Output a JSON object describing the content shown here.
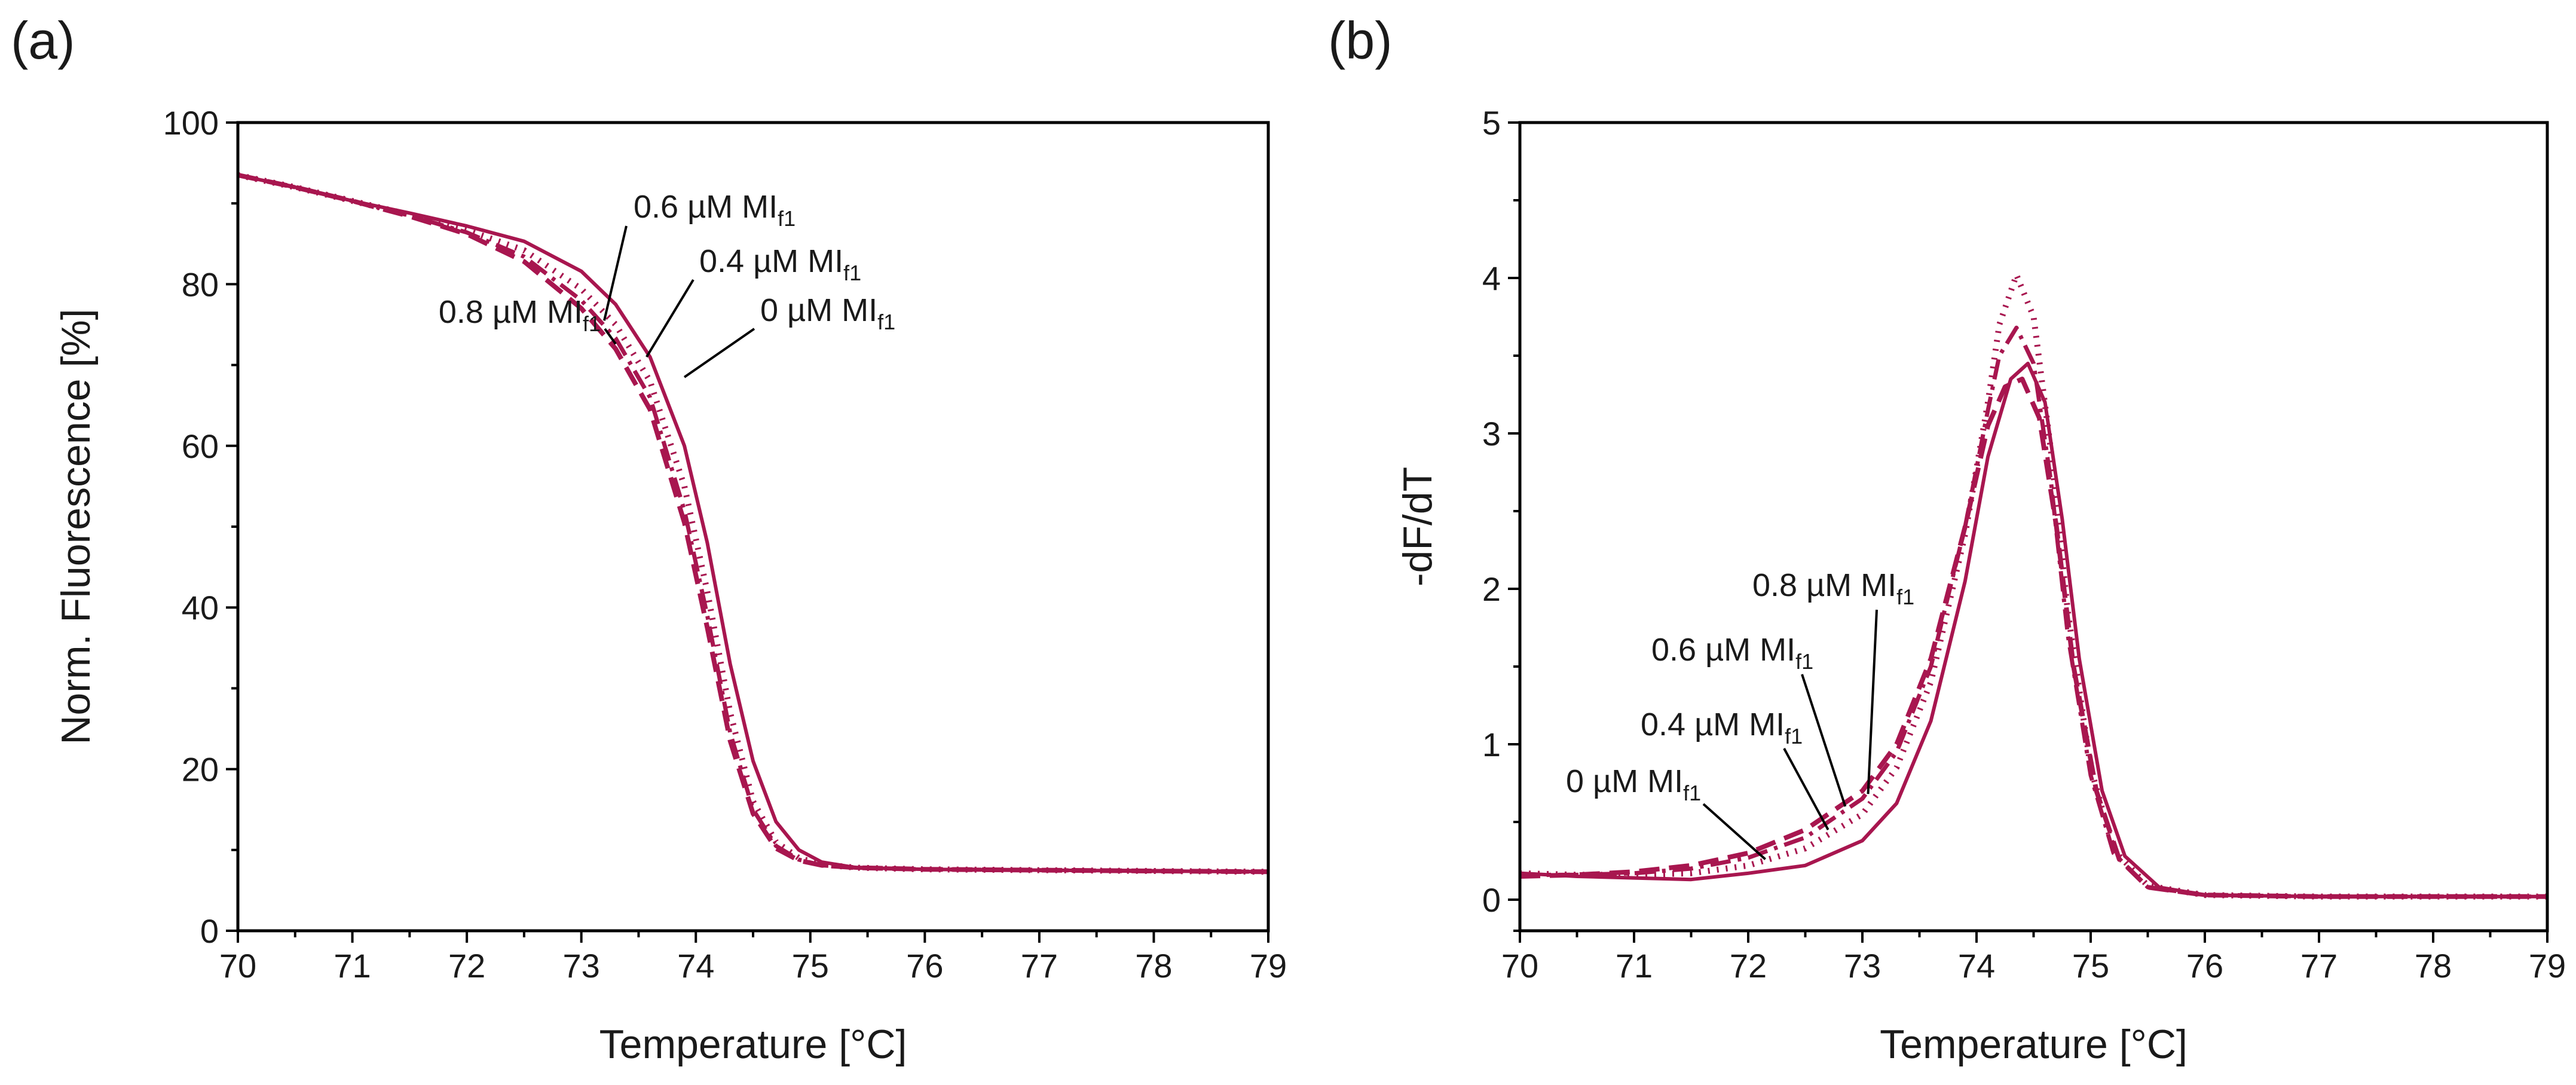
{
  "figure": {
    "accent_color": "#A8164F",
    "panels": [
      "(a)",
      "(b)"
    ]
  },
  "chart_data": [
    {
      "type": "line",
      "panel_label": "(a)",
      "title": "",
      "xlabel": "Temperature [°C]",
      "ylabel": "Norm. Fluorescence [%]",
      "xlim": [
        70,
        79
      ],
      "ylim": [
        0,
        100
      ],
      "xticks": [
        "70",
        "71",
        "72",
        "73",
        "74",
        "75",
        "76",
        "77",
        "78",
        "79"
      ],
      "yticks": [
        "0",
        "20",
        "40",
        "60",
        "80",
        "100"
      ],
      "series": [
        {
          "name": "0 µM MI_f1",
          "style": "solid",
          "color": "#A8164F",
          "x": [
            70,
            70.5,
            71,
            71.5,
            72,
            72.5,
            73,
            73.3,
            73.6,
            73.9,
            74.1,
            74.3,
            74.5,
            74.7,
            74.9,
            75.1,
            75.4,
            76,
            77,
            78,
            79
          ],
          "y": [
            93.5,
            92,
            90.3,
            88.8,
            87.2,
            85.3,
            81.6,
            77.5,
            71,
            60,
            48,
            33,
            21,
            13.5,
            10,
            8.5,
            7.8,
            7.6,
            7.5,
            7.4,
            7.3
          ]
        },
        {
          "name": "0.4 µM MI_f1",
          "style": "dotted",
          "color": "#A8164F",
          "x": [
            70,
            70.5,
            71,
            71.5,
            72,
            72.5,
            73,
            73.3,
            73.6,
            73.9,
            74.1,
            74.3,
            74.5,
            74.7,
            74.9,
            75.1,
            75.4,
            76,
            77,
            78,
            79
          ],
          "y": [
            93.5,
            92,
            90.3,
            88.6,
            86.7,
            84.2,
            79.4,
            75,
            68,
            55,
            42,
            27,
            16,
            11,
            9,
            8.2,
            7.8,
            7.6,
            7.5,
            7.4,
            7.3
          ]
        },
        {
          "name": "0.6 µM MI_f1",
          "style": "dashdot",
          "color": "#A8164F",
          "x": [
            70,
            70.5,
            71,
            71.5,
            72,
            72.5,
            73,
            73.3,
            73.6,
            73.9,
            74.1,
            74.3,
            74.5,
            74.7,
            74.9,
            75.1,
            75.4,
            76,
            77,
            78,
            79
          ],
          "y": [
            93.5,
            92,
            90.3,
            88.5,
            86.4,
            83.4,
            78,
            73.3,
            66,
            52,
            39,
            24.5,
            15,
            10.5,
            8.8,
            8.1,
            7.8,
            7.6,
            7.5,
            7.4,
            7.3
          ]
        },
        {
          "name": "0.8 µM MI_f1",
          "style": "dashed",
          "color": "#A8164F",
          "x": [
            70,
            70.5,
            71,
            71.5,
            72,
            72.5,
            73,
            73.3,
            73.6,
            73.9,
            74.1,
            74.3,
            74.5,
            74.7,
            74.9,
            75.1,
            75.4,
            76,
            77,
            78,
            79
          ],
          "y": [
            93.5,
            92,
            90.3,
            88.4,
            86.2,
            82.8,
            77,
            72,
            64.5,
            50.5,
            37.5,
            23.5,
            14.5,
            10.2,
            8.7,
            8.1,
            7.8,
            7.6,
            7.5,
            7.4,
            7.3
          ]
        }
      ],
      "annotations": [
        {
          "text": "0.6 µM MI",
          "sub": "f1",
          "points_to_x": 73.2,
          "points_to_y": 75.5
        },
        {
          "text": "0.4 µM MI",
          "sub": "f1",
          "points_to_x": 73.57,
          "points_to_y": 71
        },
        {
          "text": "0.8 µM MI",
          "sub": "f1",
          "points_to_x": 73.3,
          "points_to_y": 72.6
        },
        {
          "text": "0 µM MI",
          "sub": "f1",
          "points_to_x": 73.9,
          "points_to_y": 68.5
        }
      ]
    },
    {
      "type": "line",
      "panel_label": "(b)",
      "title": "",
      "xlabel": "Temperature [°C]",
      "ylabel": "-dF/dT",
      "xlim": [
        70,
        79
      ],
      "ylim": [
        -0.2,
        5
      ],
      "xticks": [
        "70",
        "71",
        "72",
        "73",
        "74",
        "75",
        "76",
        "77",
        "78",
        "79"
      ],
      "yticks": [
        "0",
        "1",
        "2",
        "3",
        "4",
        "5"
      ],
      "series": [
        {
          "name": "0 µM MI_f1",
          "style": "solid",
          "color": "#A8164F",
          "x": [
            70,
            70.5,
            71,
            71.5,
            72,
            72.5,
            73,
            73.3,
            73.6,
            73.9,
            74.1,
            74.3,
            74.45,
            74.6,
            74.75,
            74.9,
            75.1,
            75.3,
            75.6,
            76,
            77,
            78,
            79
          ],
          "y": [
            0.17,
            0.15,
            0.14,
            0.13,
            0.17,
            0.22,
            0.38,
            0.62,
            1.15,
            2.05,
            2.85,
            3.35,
            3.45,
            3.2,
            2.45,
            1.55,
            0.7,
            0.28,
            0.08,
            0.03,
            0.02,
            0.02,
            0.02
          ]
        },
        {
          "name": "0.4 µM MI_f1",
          "style": "dotted",
          "color": "#A8164F",
          "x": [
            70,
            70.5,
            71,
            71.5,
            72,
            72.5,
            73,
            73.3,
            73.6,
            73.9,
            74.1,
            74.2,
            74.35,
            74.5,
            74.65,
            74.8,
            75,
            75.2,
            75.5,
            76,
            77,
            78,
            79
          ],
          "y": [
            0.17,
            0.16,
            0.16,
            0.17,
            0.22,
            0.33,
            0.55,
            0.85,
            1.4,
            2.35,
            3.2,
            3.7,
            4.02,
            3.75,
            2.9,
            1.85,
            0.85,
            0.32,
            0.09,
            0.03,
            0.02,
            0.02,
            0.02
          ]
        },
        {
          "name": "0.6 µM MI_f1",
          "style": "dashdot",
          "color": "#A8164F",
          "x": [
            70,
            70.5,
            71,
            71.5,
            72,
            72.5,
            73,
            73.3,
            73.6,
            73.9,
            74.1,
            74.2,
            74.35,
            74.5,
            74.65,
            74.8,
            75,
            75.2,
            75.5,
            76,
            77,
            78,
            79
          ],
          "y": [
            0.16,
            0.16,
            0.17,
            0.2,
            0.27,
            0.4,
            0.65,
            0.95,
            1.5,
            2.4,
            3.15,
            3.5,
            3.68,
            3.45,
            2.7,
            1.7,
            0.8,
            0.3,
            0.08,
            0.03,
            0.02,
            0.02,
            0.02
          ]
        },
        {
          "name": "0.8 µM MI_f1",
          "style": "dashed",
          "color": "#A8164F",
          "x": [
            70,
            70.5,
            71,
            71.5,
            72,
            72.5,
            73,
            73.3,
            73.6,
            73.9,
            74.1,
            74.25,
            74.4,
            74.55,
            74.7,
            74.85,
            75.05,
            75.25,
            75.5,
            76,
            77,
            78,
            79
          ],
          "y": [
            0.15,
            0.16,
            0.18,
            0.22,
            0.3,
            0.45,
            0.7,
            1.0,
            1.55,
            2.4,
            3.05,
            3.3,
            3.35,
            3.1,
            2.4,
            1.5,
            0.7,
            0.26,
            0.08,
            0.03,
            0.02,
            0.02,
            0.02
          ]
        }
      ],
      "annotations": [
        {
          "text": "0.8 µM MI",
          "sub": "f1",
          "points_to_x": 73.05,
          "points_to_y": 0.68
        },
        {
          "text": "0.6 µM MI",
          "sub": "f1",
          "points_to_x": 72.85,
          "points_to_y": 0.6
        },
        {
          "text": "0.4 µM MI",
          "sub": "f1",
          "points_to_x": 72.7,
          "points_to_y": 0.45
        },
        {
          "text": "0 µM MI",
          "sub": "f1",
          "points_to_x": 72.15,
          "points_to_y": 0.26
        }
      ]
    }
  ]
}
